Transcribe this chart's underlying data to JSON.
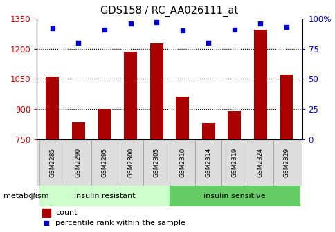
{
  "title": "GDS158 / RC_AA026111_at",
  "samples": [
    "GSM2285",
    "GSM2290",
    "GSM2295",
    "GSM2300",
    "GSM2305",
    "GSM2310",
    "GSM2314",
    "GSM2319",
    "GSM2324",
    "GSM2329"
  ],
  "counts": [
    1060,
    835,
    900,
    1185,
    1225,
    960,
    830,
    890,
    1295,
    1070
  ],
  "percentiles": [
    92,
    80,
    91,
    96,
    97,
    90,
    80,
    91,
    96,
    93
  ],
  "groups": [
    "insulin resistant",
    "insulin resistant",
    "insulin resistant",
    "insulin resistant",
    "insulin resistant",
    "insulin sensitive",
    "insulin sensitive",
    "insulin sensitive",
    "insulin sensitive",
    "insulin sensitive"
  ],
  "group_labels": [
    "insulin resistant",
    "insulin sensitive"
  ],
  "group_colors": [
    "#ccffcc",
    "#66cc66"
  ],
  "bar_color": "#aa0000",
  "dot_color": "#0000cc",
  "ylim_left": [
    750,
    1350
  ],
  "yticks_left": [
    750,
    900,
    1050,
    1200,
    1350
  ],
  "ylim_right": [
    0,
    100
  ],
  "yticks_right": [
    0,
    25,
    50,
    75,
    100
  ],
  "ytick_labels_right": [
    "0",
    "25",
    "50",
    "75",
    "100%"
  ],
  "background_color": "#ffffff",
  "plot_bg": "#ffffff",
  "grid_color": "#000000",
  "xlabel_color": "#cc0000",
  "ylabel_right_color": "#0000cc",
  "bar_width": 0.5,
  "legend_count_label": "count",
  "legend_pct_label": "percentile rank within the sample",
  "metabolism_label": "metabolism",
  "arrow_label": ""
}
